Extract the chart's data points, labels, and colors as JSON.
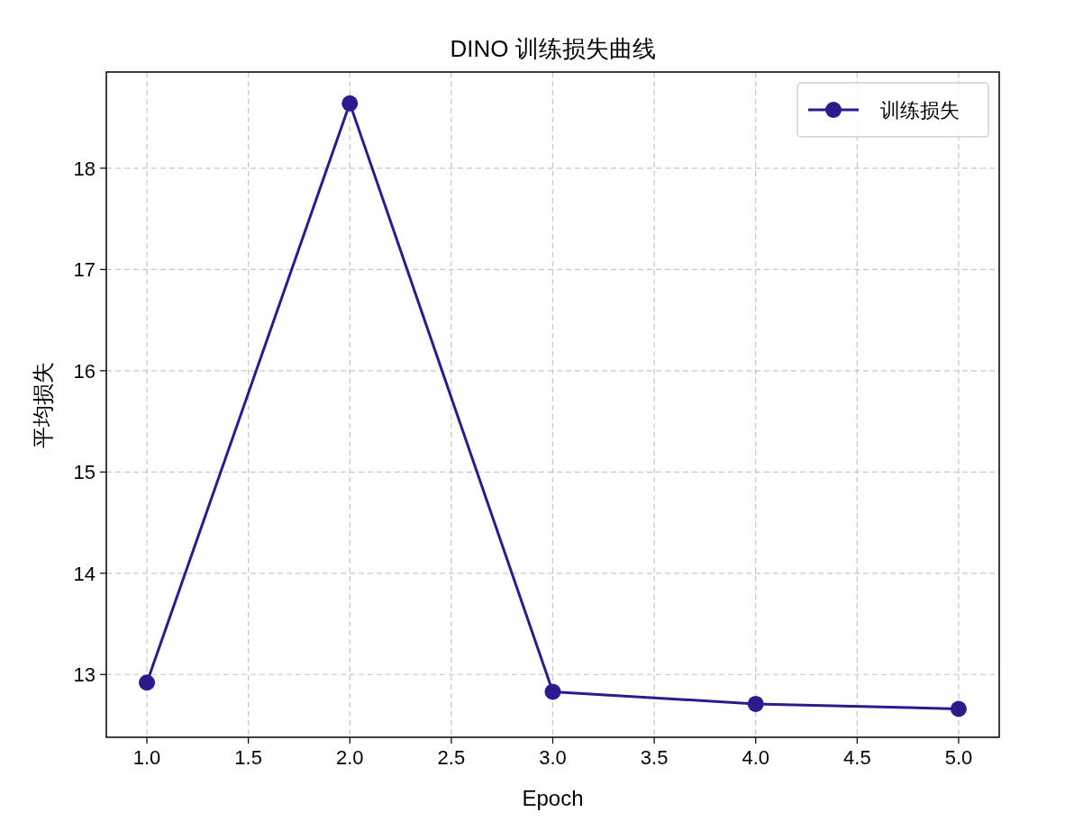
{
  "chart_data": {
    "type": "line",
    "title": "DINO 训练损失曲线",
    "xlabel": "Epoch",
    "ylabel": "平均损失",
    "x": [
      1,
      2,
      3,
      4,
      5
    ],
    "series": [
      {
        "name": "训练损失",
        "color": "#2e1a8f",
        "values": [
          12.92,
          18.64,
          12.83,
          12.71,
          12.66
        ]
      }
    ],
    "xlim": [
      0.8,
      5.2
    ],
    "xticks": [
      {
        "value": 1,
        "label": "1.0"
      },
      1.5,
      {
        "value": 2,
        "label": "2.0"
      },
      2.5,
      {
        "value": 3,
        "label": "3.0"
      },
      3.5,
      {
        "value": 4,
        "label": "4.0"
      },
      4.5,
      {
        "value": 5,
        "label": "5.0"
      }
    ],
    "ylim": [
      12.38,
      18.95
    ],
    "yticks": [
      13,
      14,
      15,
      16,
      17,
      18
    ],
    "grid": true,
    "legend": "top right",
    "marker": "circle",
    "line_style": "solid"
  }
}
